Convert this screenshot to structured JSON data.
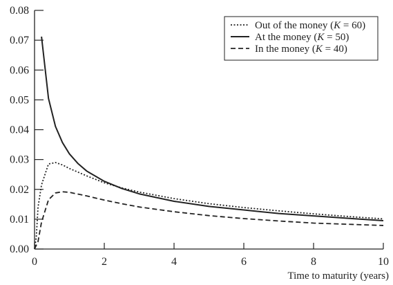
{
  "chart_data": {
    "type": "line",
    "title": "",
    "xlabel": "Time to maturity (years)",
    "ylabel": "",
    "xlim": [
      0,
      10
    ],
    "ylim": [
      0,
      0.08
    ],
    "xticks": [
      0,
      2,
      4,
      6,
      8,
      10
    ],
    "xtick_labels": [
      "0",
      "2",
      "4",
      "6",
      "8",
      "10"
    ],
    "yticks": [
      0,
      0.01,
      0.02,
      0.03,
      0.04,
      0.05,
      0.06,
      0.07,
      0.08
    ],
    "ytick_labels": [
      "0.00",
      "0.01",
      "0.02",
      "0.03",
      "0.04",
      "0.05",
      "0.06",
      "0.07",
      "0.08"
    ],
    "grid": false,
    "legend_position": "top-right",
    "series": [
      {
        "name": "Out of the money",
        "legend_prefix": "Out of the money  (",
        "legend_italic": "K",
        "legend_suffix": " = 60)",
        "style": "dotted",
        "color": "#222222",
        "x": [
          0,
          0.05,
          0.1,
          0.2,
          0.4,
          0.6,
          0.8,
          1.0,
          1.5,
          2,
          2.5,
          3,
          4,
          5,
          6,
          7,
          8,
          9,
          10
        ],
        "y": [
          0,
          0.004,
          0.014,
          0.0215,
          0.0285,
          0.029,
          0.0282,
          0.027,
          0.0245,
          0.0222,
          0.0205,
          0.0191,
          0.0169,
          0.0152,
          0.0139,
          0.0128,
          0.0118,
          0.0109,
          0.0101
        ]
      },
      {
        "name": "At the money",
        "legend_prefix": "At the money  (",
        "legend_italic": "K",
        "legend_suffix": " = 50)",
        "style": "solid",
        "color": "#222222",
        "x": [
          0.2,
          0.4,
          0.6,
          0.8,
          1.0,
          1.25,
          1.5,
          2,
          2.5,
          3,
          4,
          5,
          6,
          7,
          8,
          9,
          10
        ],
        "y": [
          0.0712,
          0.0505,
          0.0411,
          0.0357,
          0.0319,
          0.0286,
          0.0261,
          0.0227,
          0.0203,
          0.0185,
          0.016,
          0.0143,
          0.0131,
          0.0119,
          0.0111,
          0.0103,
          0.0095
        ]
      },
      {
        "name": "In the money",
        "legend_prefix": "In the money  (",
        "legend_italic": "K",
        "legend_suffix": " = 40)",
        "style": "dashed",
        "color": "#222222",
        "x": [
          0,
          0.1,
          0.2,
          0.4,
          0.6,
          0.8,
          1.0,
          1.5,
          2,
          2.5,
          3,
          4,
          5,
          6,
          7,
          8,
          9,
          10
        ],
        "y": [
          0,
          0.0025,
          0.009,
          0.0165,
          0.0188,
          0.0192,
          0.019,
          0.0178,
          0.0164,
          0.0152,
          0.0141,
          0.0125,
          0.0112,
          0.0102,
          0.0094,
          0.0087,
          0.0083,
          0.0079
        ]
      }
    ]
  }
}
